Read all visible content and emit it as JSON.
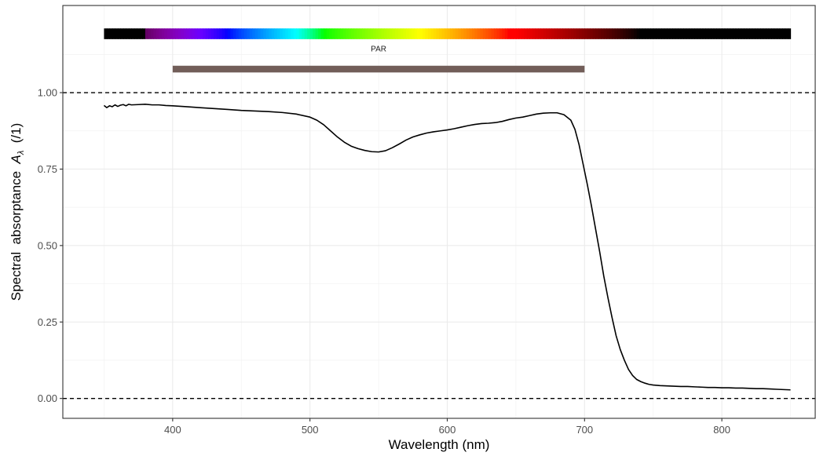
{
  "chart_data": {
    "type": "line",
    "xlabel": "Wavelength (nm)",
    "ylabel": {
      "main": "Spectral  absorptance  ",
      "symbol": "A",
      "subscript": "λ",
      "unit": "  (/1)"
    },
    "xlim": [
      320,
      868
    ],
    "ylim": [
      -0.065,
      1.285
    ],
    "x_ticks": [
      400,
      500,
      600,
      700,
      800
    ],
    "x_tick_labels": [
      "400",
      "500",
      "600",
      "700",
      "800"
    ],
    "y_ticks": [
      0,
      0.25,
      0.5,
      0.75,
      1
    ],
    "y_tick_labels": [
      "0.00",
      "0.25",
      "0.50",
      "0.75",
      "1.00"
    ],
    "grid": true,
    "legend": "none",
    "reference_lines": [
      0,
      1
    ],
    "annotations": {
      "par_label": "PAR",
      "par_range": [
        400,
        700
      ],
      "par_color": "#725E59",
      "spectrum_range": [
        350,
        850
      ]
    },
    "series": [
      {
        "color": "#000000",
        "x": [
          350,
          352,
          354,
          356,
          358,
          360,
          362,
          364,
          366,
          368,
          370,
          375,
          380,
          385,
          390,
          395,
          400,
          410,
          420,
          430,
          440,
          450,
          460,
          470,
          480,
          490,
          500,
          505,
          510,
          515,
          520,
          525,
          530,
          535,
          540,
          545,
          550,
          555,
          560,
          565,
          570,
          575,
          580,
          585,
          590,
          595,
          600,
          605,
          610,
          615,
          620,
          625,
          630,
          635,
          640,
          645,
          650,
          655,
          660,
          665,
          670,
          675,
          680,
          685,
          690,
          693,
          696,
          699,
          702,
          705,
          708,
          711,
          714,
          717,
          720,
          723,
          726,
          729,
          732,
          735,
          738,
          741,
          744,
          747,
          750,
          755,
          760,
          765,
          770,
          775,
          780,
          785,
          790,
          795,
          800,
          805,
          810,
          815,
          820,
          825,
          830,
          835,
          840,
          845,
          850
        ],
        "y": [
          0.958,
          0.951,
          0.957,
          0.954,
          0.96,
          0.955,
          0.959,
          0.961,
          0.957,
          0.962,
          0.96,
          0.961,
          0.962,
          0.96,
          0.96,
          0.958,
          0.957,
          0.954,
          0.951,
          0.948,
          0.945,
          0.942,
          0.94,
          0.938,
          0.935,
          0.93,
          0.92,
          0.91,
          0.895,
          0.875,
          0.855,
          0.838,
          0.825,
          0.817,
          0.811,
          0.807,
          0.806,
          0.81,
          0.82,
          0.832,
          0.845,
          0.855,
          0.862,
          0.868,
          0.872,
          0.875,
          0.878,
          0.882,
          0.887,
          0.892,
          0.896,
          0.899,
          0.9,
          0.902,
          0.906,
          0.912,
          0.917,
          0.92,
          0.925,
          0.93,
          0.933,
          0.934,
          0.934,
          0.928,
          0.91,
          0.88,
          0.83,
          0.765,
          0.7,
          0.63,
          0.555,
          0.48,
          0.4,
          0.33,
          0.265,
          0.205,
          0.16,
          0.125,
          0.095,
          0.075,
          0.062,
          0.055,
          0.05,
          0.046,
          0.044,
          0.042,
          0.041,
          0.04,
          0.039,
          0.039,
          0.038,
          0.037,
          0.036,
          0.036,
          0.035,
          0.035,
          0.034,
          0.034,
          0.033,
          0.032,
          0.032,
          0.031,
          0.03,
          0.029,
          0.028
        ]
      }
    ]
  }
}
